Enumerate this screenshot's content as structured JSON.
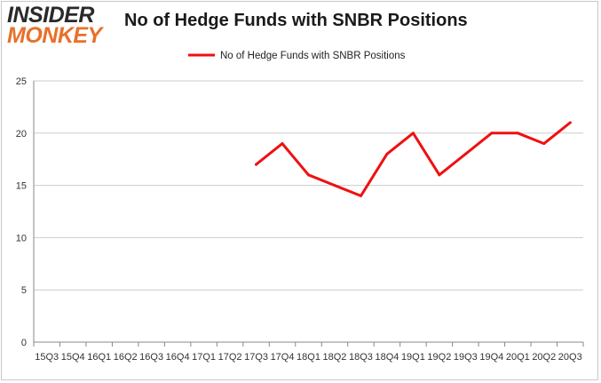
{
  "logo": {
    "line1": "INSIDER",
    "line2": "MONKEY"
  },
  "colors": {
    "series": "#ee1111",
    "grid": "#cccccc",
    "axis": "#888888",
    "logo_dark": "#2a2a2a",
    "logo_accent": "#e8702a"
  },
  "chart_data": {
    "type": "line",
    "title": "No of Hedge Funds with SNBR Positions",
    "xlabel": "",
    "ylabel": "",
    "ylim": [
      0,
      25
    ],
    "yticks": [
      0,
      5,
      10,
      15,
      20,
      25
    ],
    "grid": true,
    "legend_position": "top-center",
    "categories": [
      "15Q3",
      "15Q4",
      "16Q1",
      "16Q2",
      "16Q3",
      "16Q4",
      "17Q1",
      "17Q2",
      "17Q3",
      "17Q4",
      "18Q1",
      "18Q2",
      "18Q3",
      "18Q4",
      "19Q1",
      "19Q2",
      "19Q3",
      "19Q4",
      "20Q1",
      "20Q2",
      "20Q3"
    ],
    "series": [
      {
        "name": "No of Hedge Funds with SNBR Positions",
        "color": "#ee1111",
        "values": [
          null,
          null,
          null,
          null,
          null,
          null,
          null,
          null,
          17,
          19,
          16,
          15,
          14,
          18,
          20,
          16,
          18,
          20,
          20,
          19,
          21
        ]
      }
    ]
  }
}
